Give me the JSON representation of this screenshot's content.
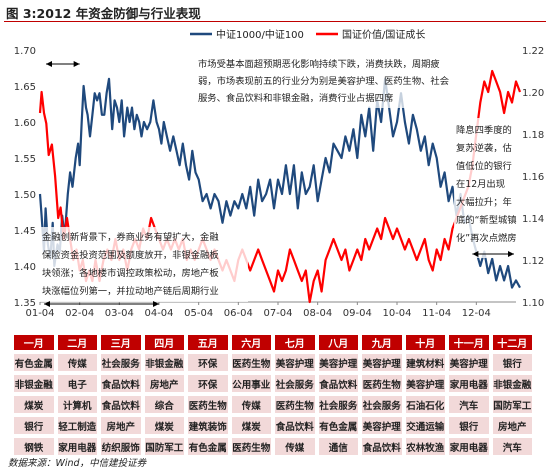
{
  "header": {
    "title": "图 3:2012 年资金防御与行业表现"
  },
  "source": "数据来源：Wind，中信建投证券",
  "colors": {
    "series1": "#1f497d",
    "series2": "#ff0000",
    "accent": "#c00000",
    "table_cell": "#f2d9d9"
  },
  "chart_data": {
    "type": "line",
    "title": "",
    "legend": {
      "placement": "top-right",
      "entries": [
        "中证1000/中证100",
        "国证价值/国证成长"
      ]
    },
    "x_ticks": [
      "01-04",
      "02-04",
      "03-04",
      "04-04",
      "05-04",
      "06-04",
      "07-04",
      "08-04",
      "09-04",
      "10-04",
      "11-04",
      "12-04"
    ],
    "y_left": {
      "ticks": [
        "1.70",
        "1.65",
        "1.60",
        "1.55",
        "1.50",
        "1.45",
        "1.40",
        "1.35"
      ],
      "range": [
        1.35,
        1.7
      ]
    },
    "y_right": {
      "ticks": [
        "1.22",
        "1.20",
        "1.18",
        "1.16",
        "1.14",
        "1.12",
        "1.10"
      ],
      "range": [
        1.1,
        1.22
      ]
    },
    "grid": false,
    "series": [
      {
        "name": "中证1000/中证100",
        "axis": "left",
        "color": "#1f497d",
        "points": [
          [
            0,
            1.5
          ],
          [
            0.04,
            1.47
          ],
          [
            0.1,
            1.42
          ],
          [
            0.14,
            1.48
          ],
          [
            0.2,
            1.43
          ],
          [
            0.26,
            1.41
          ],
          [
            0.32,
            1.46
          ],
          [
            0.36,
            1.4
          ],
          [
            0.44,
            1.43
          ],
          [
            0.5,
            1.42
          ],
          [
            0.56,
            1.47
          ],
          [
            0.62,
            1.44
          ],
          [
            0.7,
            1.5
          ],
          [
            0.76,
            1.53
          ],
          [
            0.82,
            1.51
          ],
          [
            0.9,
            1.55
          ],
          [
            0.96,
            1.57
          ],
          [
            1.0,
            1.54
          ],
          [
            1.05,
            1.6
          ],
          [
            1.1,
            1.65
          ],
          [
            1.16,
            1.62
          ],
          [
            1.2,
            1.61
          ],
          [
            1.26,
            1.58
          ],
          [
            1.32,
            1.61
          ],
          [
            1.38,
            1.64
          ],
          [
            1.44,
            1.63
          ],
          [
            1.5,
            1.64
          ],
          [
            1.56,
            1.61
          ],
          [
            1.62,
            1.61
          ],
          [
            1.68,
            1.64
          ],
          [
            1.74,
            1.66
          ],
          [
            1.82,
            1.59
          ],
          [
            1.88,
            1.63
          ],
          [
            1.94,
            1.62
          ],
          [
            2.0,
            1.6
          ],
          [
            2.06,
            1.63
          ],
          [
            2.12,
            1.58
          ],
          [
            2.2,
            1.62
          ],
          [
            2.26,
            1.6
          ],
          [
            2.32,
            1.62
          ],
          [
            2.38,
            1.59
          ],
          [
            2.44,
            1.61
          ],
          [
            2.5,
            1.6
          ],
          [
            2.56,
            1.58
          ],
          [
            2.62,
            1.6
          ],
          [
            2.7,
            1.59
          ],
          [
            2.78,
            1.6
          ],
          [
            2.86,
            1.63
          ],
          [
            2.94,
            1.6
          ],
          [
            3.0,
            1.59
          ],
          [
            3.06,
            1.57
          ],
          [
            3.12,
            1.6
          ],
          [
            3.2,
            1.58
          ],
          [
            3.28,
            1.56
          ],
          [
            3.36,
            1.58
          ],
          [
            3.44,
            1.56
          ],
          [
            3.52,
            1.54
          ],
          [
            3.6,
            1.57
          ],
          [
            3.68,
            1.54
          ],
          [
            3.76,
            1.52
          ],
          [
            3.84,
            1.56
          ],
          [
            3.92,
            1.53
          ],
          [
            4.0,
            1.52
          ],
          [
            4.1,
            1.49
          ],
          [
            4.2,
            1.5
          ],
          [
            4.3,
            1.48
          ],
          [
            4.4,
            1.5
          ],
          [
            4.5,
            1.49
          ],
          [
            4.6,
            1.46
          ],
          [
            4.7,
            1.49
          ],
          [
            4.8,
            1.47
          ],
          [
            4.9,
            1.49
          ],
          [
            5.0,
            1.48
          ],
          [
            5.1,
            1.5
          ],
          [
            5.2,
            1.48
          ],
          [
            5.3,
            1.51
          ],
          [
            5.4,
            1.47
          ],
          [
            5.5,
            1.52
          ],
          [
            5.6,
            1.49
          ],
          [
            5.7,
            1.5
          ],
          [
            5.8,
            1.52
          ],
          [
            5.9,
            1.48
          ],
          [
            6.0,
            1.52
          ],
          [
            6.1,
            1.5
          ],
          [
            6.2,
            1.54
          ],
          [
            6.3,
            1.5
          ],
          [
            6.4,
            1.54
          ],
          [
            6.5,
            1.48
          ],
          [
            6.6,
            1.53
          ],
          [
            6.7,
            1.5
          ],
          [
            6.8,
            1.51
          ],
          [
            6.9,
            1.54
          ],
          [
            7.0,
            1.49
          ],
          [
            7.1,
            1.52
          ],
          [
            7.2,
            1.55
          ],
          [
            7.3,
            1.53
          ],
          [
            7.4,
            1.57
          ],
          [
            7.5,
            1.56
          ],
          [
            7.6,
            1.55
          ],
          [
            7.7,
            1.58
          ],
          [
            7.8,
            1.56
          ],
          [
            7.9,
            1.59
          ],
          [
            8.0,
            1.55
          ],
          [
            8.1,
            1.61
          ],
          [
            8.2,
            1.58
          ],
          [
            8.3,
            1.62
          ],
          [
            8.4,
            1.56
          ],
          [
            8.5,
            1.63
          ],
          [
            8.6,
            1.6
          ],
          [
            8.7,
            1.66
          ],
          [
            8.8,
            1.62
          ],
          [
            8.9,
            1.58
          ],
          [
            9.0,
            1.6
          ],
          [
            9.1,
            1.64
          ],
          [
            9.2,
            1.6
          ],
          [
            9.3,
            1.57
          ],
          [
            9.4,
            1.61
          ],
          [
            9.5,
            1.59
          ],
          [
            9.6,
            1.56
          ],
          [
            9.7,
            1.58
          ],
          [
            9.8,
            1.54
          ],
          [
            9.9,
            1.57
          ],
          [
            10.0,
            1.55
          ],
          [
            10.1,
            1.51
          ],
          [
            10.2,
            1.53
          ],
          [
            10.3,
            1.49
          ],
          [
            10.4,
            1.51
          ],
          [
            10.5,
            1.47
          ],
          [
            10.6,
            1.5
          ],
          [
            10.7,
            1.46
          ],
          [
            10.8,
            1.47
          ],
          [
            10.9,
            1.44
          ],
          [
            11.0,
            1.42
          ],
          [
            11.1,
            1.4
          ],
          [
            11.2,
            1.42
          ],
          [
            11.3,
            1.39
          ],
          [
            11.4,
            1.41
          ],
          [
            11.5,
            1.38
          ],
          [
            11.6,
            1.4
          ],
          [
            11.7,
            1.38
          ],
          [
            11.8,
            1.4
          ],
          [
            11.9,
            1.37
          ],
          [
            12.0,
            1.38
          ],
          [
            12.1,
            1.37
          ]
        ]
      },
      {
        "name": "国证价值/国证成长",
        "axis": "right",
        "color": "#ff0000",
        "points": [
          [
            0,
            1.19
          ],
          [
            0.04,
            1.2
          ],
          [
            0.1,
            1.19
          ],
          [
            0.16,
            1.185
          ],
          [
            0.22,
            1.17
          ],
          [
            0.3,
            1.175
          ],
          [
            0.38,
            1.16
          ],
          [
            0.46,
            1.14
          ],
          [
            0.52,
            1.145
          ],
          [
            0.6,
            1.13
          ],
          [
            0.68,
            1.14
          ],
          [
            0.76,
            1.13
          ],
          [
            0.84,
            1.12
          ],
          [
            0.92,
            1.125
          ],
          [
            1.0,
            1.115
          ],
          [
            1.08,
            1.12
          ],
          [
            1.16,
            1.11
          ],
          [
            1.24,
            1.115
          ],
          [
            1.32,
            1.11
          ],
          [
            1.4,
            1.12
          ],
          [
            1.5,
            1.11
          ],
          [
            1.6,
            1.12
          ],
          [
            1.7,
            1.125
          ],
          [
            1.8,
            1.12
          ],
          [
            1.9,
            1.13
          ],
          [
            2.0,
            1.12
          ],
          [
            2.1,
            1.125
          ],
          [
            2.2,
            1.115
          ],
          [
            2.3,
            1.125
          ],
          [
            2.4,
            1.13
          ],
          [
            2.5,
            1.125
          ],
          [
            2.6,
            1.135
          ],
          [
            2.7,
            1.13
          ],
          [
            2.8,
            1.14
          ],
          [
            2.9,
            1.135
          ],
          [
            3.0,
            1.13
          ],
          [
            3.1,
            1.125
          ],
          [
            3.2,
            1.13
          ],
          [
            3.3,
            1.125
          ],
          [
            3.4,
            1.13
          ],
          [
            3.5,
            1.125
          ],
          [
            3.6,
            1.13
          ],
          [
            3.7,
            1.12
          ],
          [
            3.8,
            1.125
          ],
          [
            3.9,
            1.12
          ],
          [
            4.0,
            1.125
          ],
          [
            4.1,
            1.13
          ],
          [
            4.2,
            1.125
          ],
          [
            4.3,
            1.12
          ],
          [
            4.4,
            1.125
          ],
          [
            4.5,
            1.12
          ],
          [
            4.6,
            1.115
          ],
          [
            4.7,
            1.12
          ],
          [
            4.8,
            1.115
          ],
          [
            4.9,
            1.11
          ],
          [
            5.0,
            1.12
          ],
          [
            5.1,
            1.125
          ],
          [
            5.2,
            1.12
          ],
          [
            5.3,
            1.115
          ],
          [
            5.4,
            1.12
          ],
          [
            5.5,
            1.125
          ],
          [
            5.6,
            1.12
          ],
          [
            5.7,
            1.115
          ],
          [
            5.8,
            1.11
          ],
          [
            5.9,
            1.105
          ],
          [
            6.0,
            1.115
          ],
          [
            6.1,
            1.11
          ],
          [
            6.2,
            1.115
          ],
          [
            6.3,
            1.125
          ],
          [
            6.4,
            1.12
          ],
          [
            6.5,
            1.115
          ],
          [
            6.6,
            1.11
          ],
          [
            6.7,
            1.115
          ],
          [
            6.8,
            1.1
          ],
          [
            6.9,
            1.11
          ],
          [
            7.0,
            1.115
          ],
          [
            7.1,
            1.105
          ],
          [
            7.2,
            1.12
          ],
          [
            7.3,
            1.125
          ],
          [
            7.4,
            1.13
          ],
          [
            7.5,
            1.125
          ],
          [
            7.6,
            1.12
          ],
          [
            7.7,
            1.125
          ],
          [
            7.8,
            1.115
          ],
          [
            7.9,
            1.12
          ],
          [
            8.0,
            1.125
          ],
          [
            8.1,
            1.12
          ],
          [
            8.2,
            1.13
          ],
          [
            8.3,
            1.125
          ],
          [
            8.4,
            1.13
          ],
          [
            8.5,
            1.135
          ],
          [
            8.6,
            1.13
          ],
          [
            8.7,
            1.14
          ],
          [
            8.8,
            1.135
          ],
          [
            8.9,
            1.13
          ],
          [
            9.0,
            1.135
          ],
          [
            9.1,
            1.13
          ],
          [
            9.2,
            1.125
          ],
          [
            9.3,
            1.13
          ],
          [
            9.4,
            1.125
          ],
          [
            9.5,
            1.12
          ],
          [
            9.6,
            1.125
          ],
          [
            9.7,
            1.13
          ],
          [
            9.8,
            1.12
          ],
          [
            9.9,
            1.115
          ],
          [
            10.0,
            1.125
          ],
          [
            10.1,
            1.12
          ],
          [
            10.2,
            1.13
          ],
          [
            10.3,
            1.125
          ],
          [
            10.4,
            1.135
          ],
          [
            10.5,
            1.14
          ],
          [
            10.6,
            1.145
          ],
          [
            10.7,
            1.15
          ],
          [
            10.8,
            1.155
          ],
          [
            10.9,
            1.165
          ],
          [
            11.0,
            1.18
          ],
          [
            11.1,
            1.195
          ],
          [
            11.2,
            1.205
          ],
          [
            11.3,
            1.2
          ],
          [
            11.4,
            1.21
          ],
          [
            11.5,
            1.205
          ],
          [
            11.6,
            1.2
          ],
          [
            11.7,
            1.19
          ],
          [
            11.8,
            1.2
          ],
          [
            11.9,
            1.195
          ],
          [
            12.0,
            1.205
          ],
          [
            12.1,
            1.2
          ]
        ]
      }
    ]
  },
  "annotations": {
    "top": [
      "市场受基本面超预期恶化影响持续下跌，消费扶跌，周期疲",
      "弱，市场表现前五的行业分为别是美容护理、医药生物、社会",
      "服务、食品饮料和非银金融，消费行业占据四席"
    ],
    "left": [
      "金融创新背景下，券商业务有望扩大，金融",
      "保险资金投资范围及额度放开，非银金融板",
      "块领涨；各地楼市调控政策松动，房地产板",
      "块涨幅位列第一，并拉动地产链后周期行业"
    ],
    "right": [
      "降息四季度的",
      "复苏逆袭，估",
      "值低位的银行",
      "在12月出现",
      "大幅拉升；年",
      "底的“新型城镇",
      "化”再次点燃房"
    ]
  },
  "table": {
    "headers": [
      "一月",
      "二月",
      "三月",
      "四月",
      "五月",
      "六月",
      "七月",
      "八月",
      "九月",
      "十月",
      "十一月",
      "十二月"
    ],
    "rows": [
      [
        "有色金属",
        "传媒",
        "社会服务",
        "非银金融",
        "环保",
        "医药生物",
        "美容护理",
        "美容护理",
        "美容护理",
        "建筑材料",
        "美容护理",
        "银行"
      ],
      [
        "非银金融",
        "电子",
        "食品饮料",
        "房地产",
        "环保",
        "公用事业",
        "社会服务",
        "食品饮料",
        "医药生物",
        "美容护理",
        "家用电器",
        "非银金融"
      ],
      [
        "煤炭",
        "计算机",
        "食品饮料",
        "综合",
        "医药生物",
        "传媒",
        "医药生物",
        "社会服务",
        "社会服务",
        "石油石化",
        "汽车",
        "国防军工"
      ],
      [
        "银行",
        "轻工制造",
        "房地产",
        "煤炭",
        "建筑装饰",
        "煤炭",
        "食品饮料",
        "有色金属",
        "美容护理",
        "交通运输",
        "银行",
        "房地产"
      ],
      [
        "钢铁",
        "家用电器",
        "纺织服饰",
        "国防军工",
        "有色金属",
        "医药生物",
        "传媒",
        "通信",
        "食品饮料",
        "农林牧渔",
        "家用电器",
        "汽车"
      ]
    ]
  }
}
